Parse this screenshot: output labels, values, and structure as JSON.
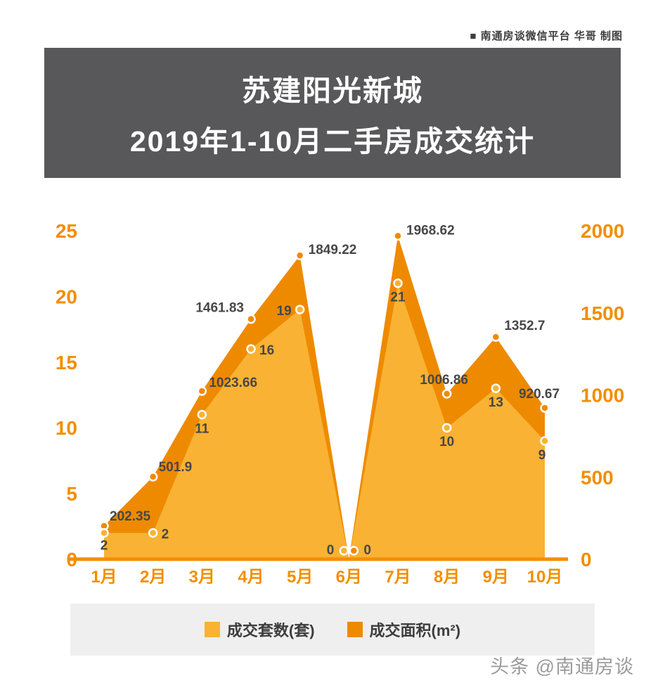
{
  "attribution": {
    "text": "■ 南通房谈微信平台 华哥 制图"
  },
  "header": {
    "title_line1": "苏建阳光新城",
    "title_line2": "2019年1-10月二手房成交统计"
  },
  "footer": {
    "watermark": "头条 @南通房谈"
  },
  "legend": {
    "items": [
      {
        "label": "成交套数(套)",
        "color": "#F9B233"
      },
      {
        "label": "成交面积(m²)",
        "color": "#EE8A00"
      }
    ]
  },
  "colors": {
    "units_series": "#F9B233",
    "area_series": "#EE8A00",
    "axis": "#F28E00",
    "data_label": "#474747",
    "title_bg": "#58585A",
    "legend_bg": "#EFEFEF"
  },
  "chart_data": {
    "type": "area",
    "title": "苏建阳光新城 2019年1-10月二手房成交统计",
    "categories": [
      "1月",
      "2月",
      "3月",
      "4月",
      "5月",
      "6月",
      "7月",
      "8月",
      "9月",
      "10月"
    ],
    "series": [
      {
        "name": "成交套数(套)",
        "axis": "left",
        "color": "#F9B233",
        "values": [
          2,
          2,
          11,
          16,
          19,
          0,
          21,
          10,
          13,
          9
        ]
      },
      {
        "name": "成交面积(m²)",
        "axis": "right",
        "color": "#EE8A00",
        "values": [
          202.35,
          501.9,
          1023.66,
          1461.83,
          1849.22,
          0,
          1968.62,
          1006.86,
          1352.7,
          920.67
        ]
      }
    ],
    "left_axis": {
      "min": 0,
      "max": 25,
      "ticks": [
        0,
        5,
        10,
        15,
        20,
        25
      ]
    },
    "right_axis": {
      "min": 0,
      "max": 2000,
      "ticks": [
        0,
        500,
        1000,
        1500,
        2000
      ]
    },
    "grid": false,
    "legend_position": "bottom"
  }
}
